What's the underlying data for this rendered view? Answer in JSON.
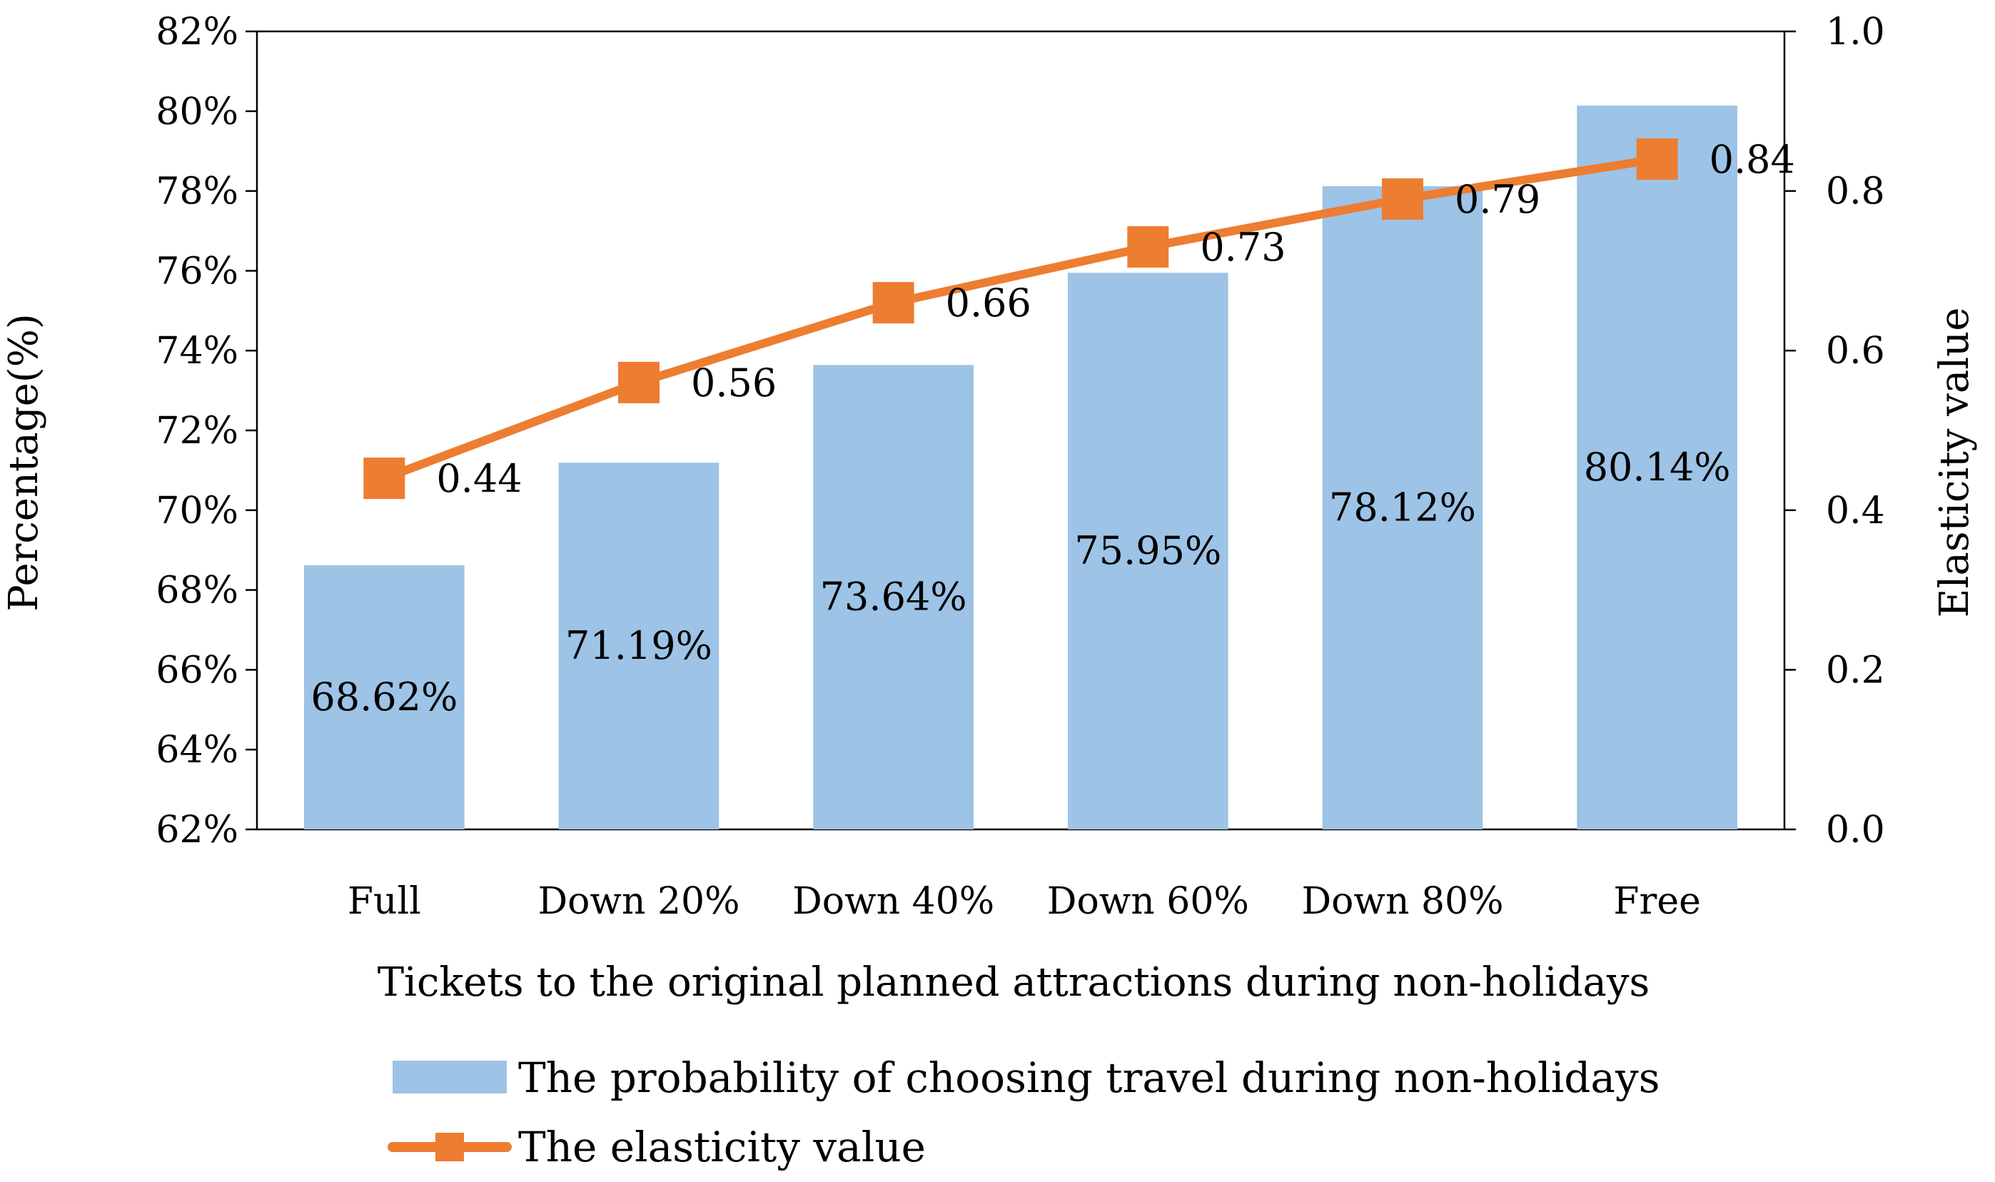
{
  "chart_data": {
    "type": "bar+line",
    "categories": [
      "Full",
      "Down 20%",
      "Down 40%",
      "Down 60%",
      "Down 80%",
      "Free"
    ],
    "series": [
      {
        "name": "The probability of choosing travel during non-holidays",
        "type": "bar",
        "axis": "left",
        "values": [
          68.62,
          71.19,
          73.64,
          75.95,
          78.12,
          80.14
        ],
        "labels": [
          "68.62%",
          "71.19%",
          "73.64%",
          "75.95%",
          "78.12%",
          "80.14%"
        ],
        "color": "#9dc3e6"
      },
      {
        "name": "The elasticity value",
        "type": "line",
        "axis": "right",
        "values": [
          0.44,
          0.56,
          0.66,
          0.73,
          0.79,
          0.84
        ],
        "labels": [
          "0.44",
          "0.56",
          "0.66",
          "0.73",
          "0.79",
          "0.84"
        ],
        "color": "#ed7d31"
      }
    ],
    "xlabel": "Tickets to the original planned attractions during non-holidays",
    "ylabel_left": "Percentage(%)",
    "ylabel_right": "Elasticity value",
    "ylim_left": [
      62,
      82
    ],
    "yticks_left": [
      62,
      64,
      66,
      68,
      70,
      72,
      74,
      76,
      78,
      80,
      82
    ],
    "ytick_labels_left": [
      "62%",
      "64%",
      "66%",
      "68%",
      "70%",
      "72%",
      "74%",
      "76%",
      "78%",
      "80%",
      "82%"
    ],
    "ylim_right": [
      0,
      1
    ],
    "yticks_right": [
      0,
      0.2,
      0.4,
      0.6,
      0.8,
      1.0
    ],
    "ytick_labels_right": [
      "0.0",
      "0.2",
      "0.4",
      "0.6",
      "0.8",
      "1.0"
    ],
    "legend_position": "bottom",
    "grid": false
  }
}
